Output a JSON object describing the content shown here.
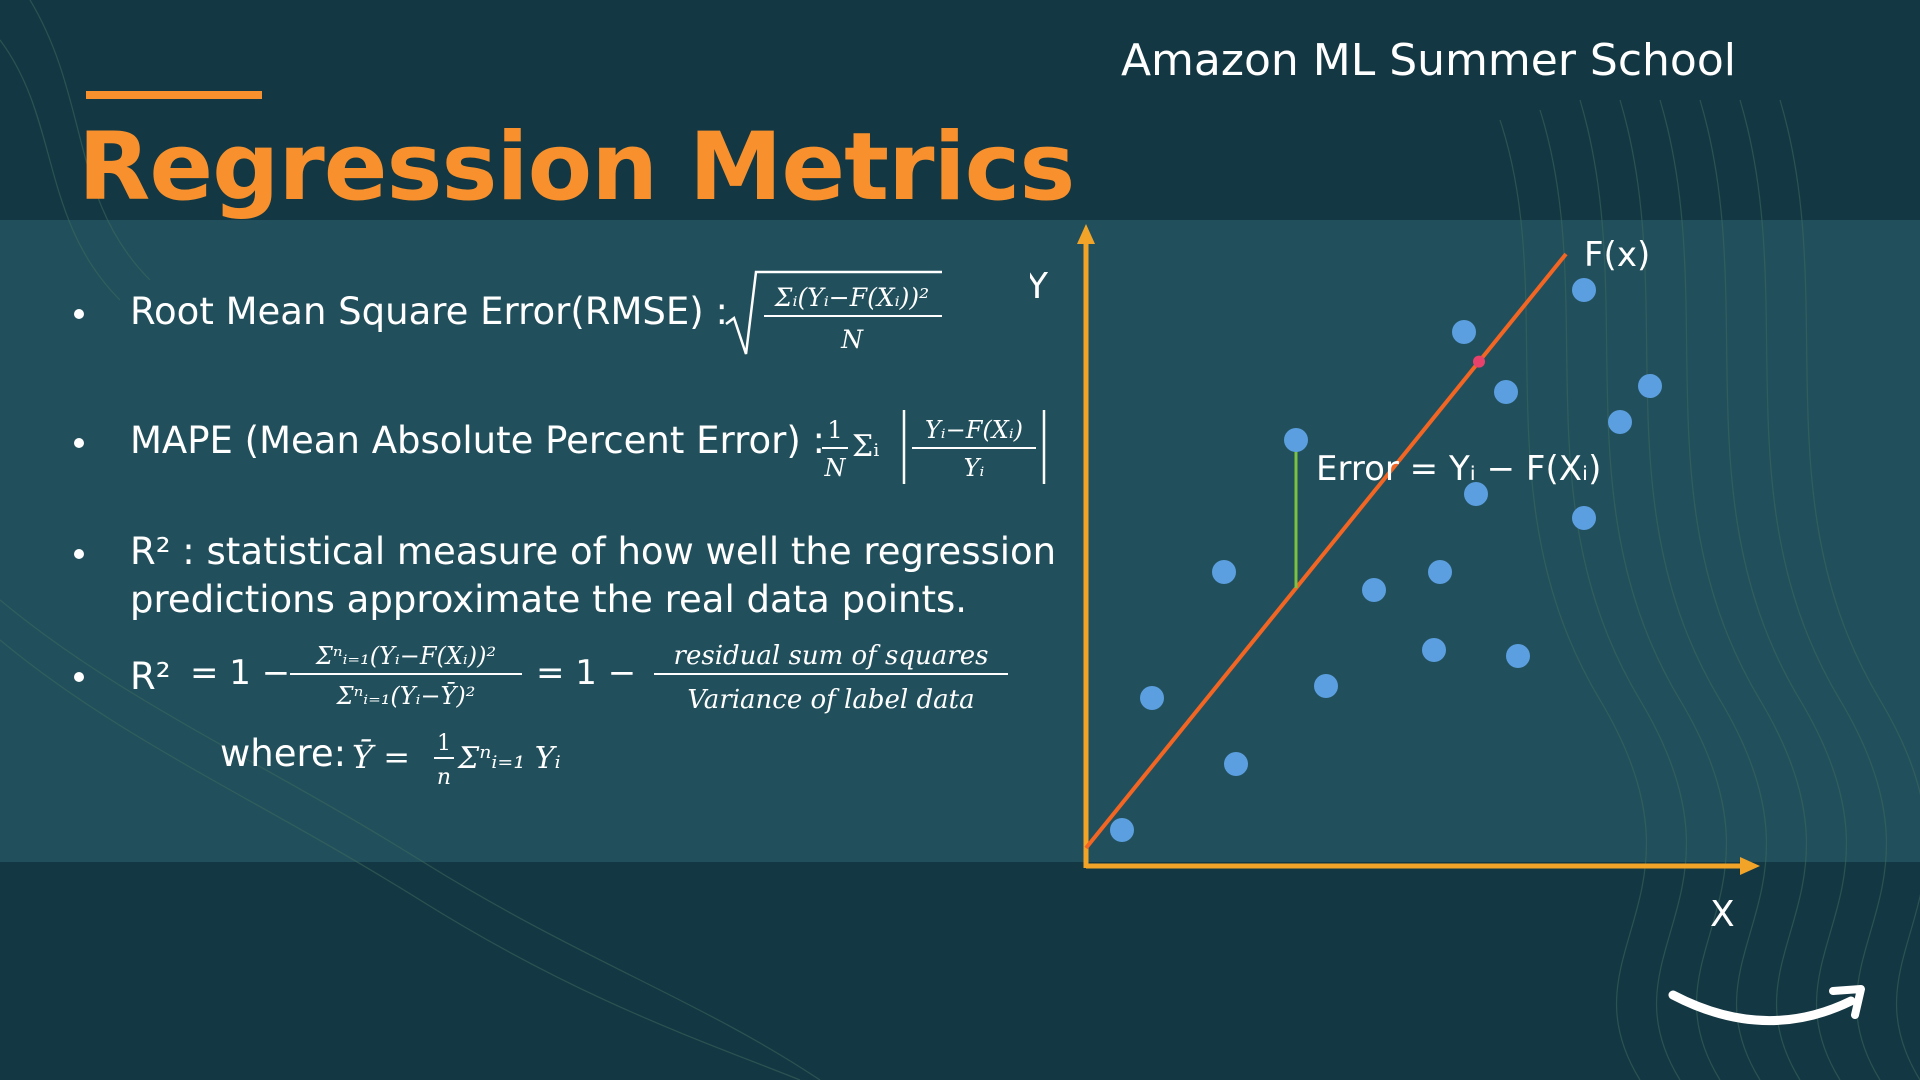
{
  "header": {
    "school": "Amazon ML Summer School",
    "title": "Regression Metrics"
  },
  "bullets": {
    "rmse_label": "Root Mean Square Error(RMSE) :",
    "mape_label": "MAPE (Mean Absolute Percent Error) :",
    "r2_line1": "R² : statistical measure of how well the regression",
    "r2_line2": "predictions approximate the real data points.",
    "r2_formula_label": "R²",
    "where_label": "where:"
  },
  "formulas": {
    "rmse_num": "Σᵢ(Yᵢ−F(Xᵢ))²",
    "rmse_den": "N",
    "mape_coef_num": "1",
    "mape_coef_den": "N",
    "mape_sum": "Σᵢ",
    "mape_num": "Yᵢ−F(Xᵢ)",
    "mape_den": "Yᵢ",
    "r2_eq1": "= 1 −",
    "r2_num": "Σⁿᵢ₌₁(Yᵢ−F(Xᵢ))²",
    "r2_den": "Σⁿᵢ₌₁(Yᵢ−Ȳ)²",
    "r2_eq2": "= 1 −",
    "r2_text_num": "residual sum of squares",
    "r2_text_den": "Variance of label data",
    "ybar": "Ȳ =",
    "where_coef_num": "1",
    "where_coef_den": "n",
    "where_sum": "Σⁿᵢ₌₁ Yᵢ"
  },
  "diagram": {
    "y_label": "Y",
    "x_label": "X",
    "fx_label": "F(x)",
    "error_label": "Error = Yᵢ − F(Xᵢ)",
    "line": {
      "x0": 0.0,
      "y0": 0.0,
      "x1": 10.0,
      "y1": 10.0
    },
    "points": [
      {
        "x": 0.6,
        "y": 0.6
      },
      {
        "x": 1.1,
        "y": 2.8
      },
      {
        "x": 2.5,
        "y": 1.7
      },
      {
        "x": 2.3,
        "y": 4.9
      },
      {
        "x": 3.5,
        "y": 7.1
      },
      {
        "x": 4.0,
        "y": 3.0
      },
      {
        "x": 4.8,
        "y": 4.6
      },
      {
        "x": 5.8,
        "y": 3.6
      },
      {
        "x": 5.9,
        "y": 4.9
      },
      {
        "x": 6.3,
        "y": 8.9
      },
      {
        "x": 6.5,
        "y": 6.2
      },
      {
        "x": 7.2,
        "y": 3.5
      },
      {
        "x": 7.0,
        "y": 7.9
      },
      {
        "x": 8.3,
        "y": 9.6
      },
      {
        "x": 8.3,
        "y": 5.8
      },
      {
        "x": 8.9,
        "y": 7.4
      },
      {
        "x": 9.4,
        "y": 8.0
      }
    ],
    "error_point_index": 4,
    "colors": {
      "axis": "#f2a428",
      "fit_line": "#f26522",
      "point": "#5c9fe0",
      "error": "#7cc142"
    }
  },
  "logo": {
    "name": "amazon-smile-logo"
  }
}
